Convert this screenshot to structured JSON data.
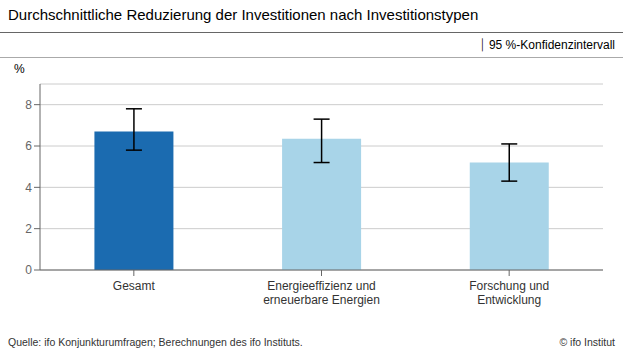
{
  "chart_data": {
    "type": "bar",
    "title": "Durchschnittliche Reduzierung der Investitionen nach Investitionstypen",
    "categories": [
      "Gesamt",
      "Energieeffizienz und\nerneuerbare Energien",
      "Forschung und\nEntwicklung"
    ],
    "values": [
      6.7,
      6.35,
      5.2
    ],
    "errors_low": [
      0.9,
      1.15,
      0.9
    ],
    "errors_high": [
      1.1,
      0.95,
      0.9
    ],
    "colors": [
      "#1B6BB0",
      "#A8D4E8",
      "#A8D4E8"
    ],
    "ylabel": "%",
    "ylim": [
      0,
      9
    ],
    "yticks": [
      0,
      2,
      4,
      6,
      8
    ],
    "grid": true,
    "legend_label": "⏐ 95 %-Konfidenzintervall",
    "source": "Quelle: ifo Konjunkturumfragen; Berechnungen des ifo Instituts.",
    "copyright": "© ifo Institut"
  }
}
